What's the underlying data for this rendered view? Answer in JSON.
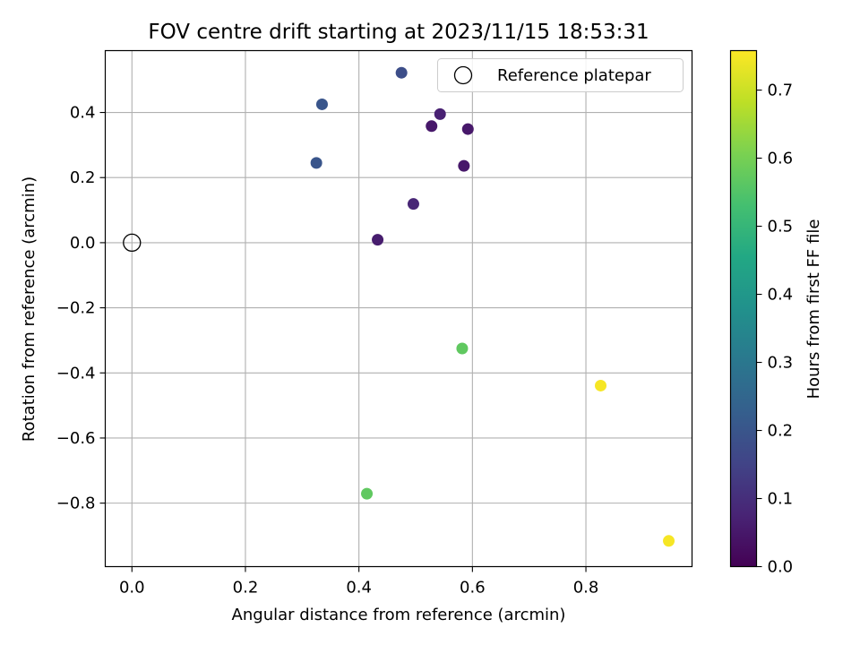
{
  "chart_data": {
    "type": "scatter",
    "title": "FOV centre drift starting at 2023/11/15 18:53:31",
    "xlabel": "Angular distance from reference (arcmin)",
    "ylabel": "Rotation from reference (arcmin)",
    "xlim": [
      -0.047,
      0.987
    ],
    "ylim": [
      -0.995,
      0.59
    ],
    "xticks": [
      0.0,
      0.2,
      0.4,
      0.6,
      0.8
    ],
    "xtick_labels": [
      "0.0",
      "0.2",
      "0.4",
      "0.6",
      "0.8"
    ],
    "yticks": [
      -0.8,
      -0.6,
      -0.4,
      -0.2,
      0.0,
      0.2,
      0.4
    ],
    "ytick_labels": [
      "−0.8",
      "−0.6",
      "−0.4",
      "−0.2",
      "0.0",
      "0.2",
      "0.4"
    ],
    "grid": true,
    "legend": {
      "position": "top-right",
      "entries": [
        "Reference platepar"
      ]
    },
    "reference_point": {
      "x": 0.0,
      "y": 0.0,
      "label": "Reference platepar"
    },
    "colormap": "viridis",
    "colorbar": {
      "label": "Hours from first FF file",
      "range": [
        0.0,
        0.758
      ],
      "ticks": [
        0.0,
        0.1,
        0.2,
        0.3,
        0.4,
        0.5,
        0.6,
        0.7
      ],
      "tick_labels": [
        "0.0",
        "0.1",
        "0.2",
        "0.3",
        "0.4",
        "0.5",
        "0.6",
        "0.7"
      ]
    },
    "points": [
      {
        "x": 0.475,
        "y": 0.522,
        "hours": 0.18
      },
      {
        "x": 0.335,
        "y": 0.425,
        "hours": 0.2
      },
      {
        "x": 0.325,
        "y": 0.245,
        "hours": 0.2
      },
      {
        "x": 0.543,
        "y": 0.395,
        "hours": 0.07
      },
      {
        "x": 0.528,
        "y": 0.358,
        "hours": 0.05
      },
      {
        "x": 0.592,
        "y": 0.349,
        "hours": 0.05
      },
      {
        "x": 0.585,
        "y": 0.236,
        "hours": 0.05
      },
      {
        "x": 0.496,
        "y": 0.119,
        "hours": 0.08
      },
      {
        "x": 0.433,
        "y": 0.009,
        "hours": 0.06
      },
      {
        "x": 0.582,
        "y": -0.325,
        "hours": 0.57
      },
      {
        "x": 0.414,
        "y": -0.771,
        "hours": 0.57
      },
      {
        "x": 0.826,
        "y": -0.439,
        "hours": 0.75
      },
      {
        "x": 0.946,
        "y": -0.916,
        "hours": 0.75
      }
    ]
  }
}
